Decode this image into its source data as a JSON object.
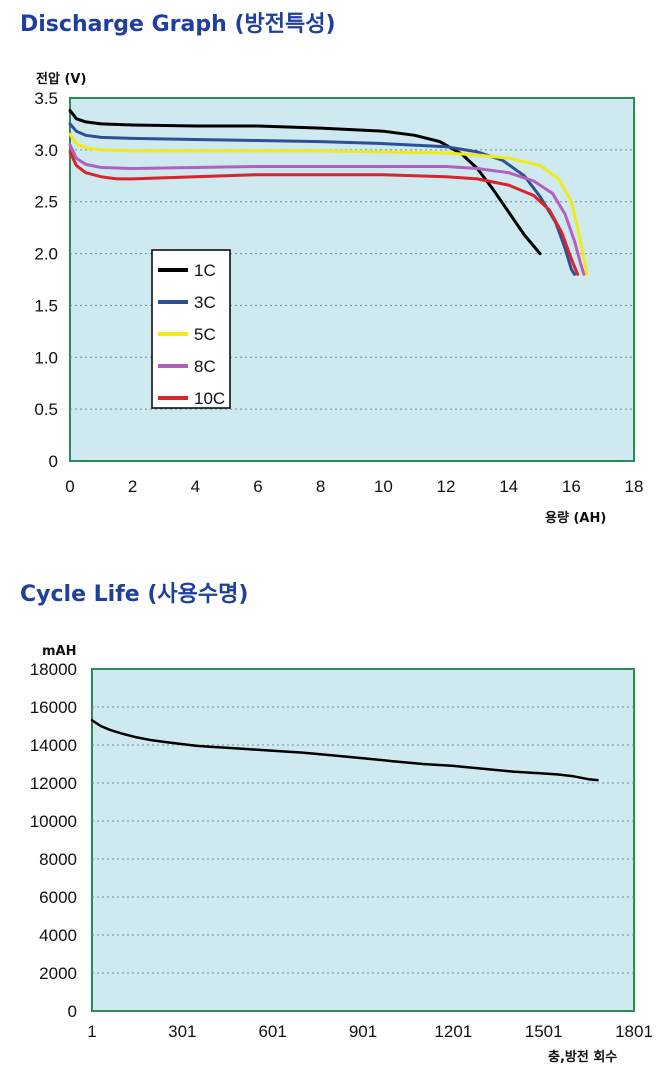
{
  "discharge": {
    "title": "Discharge Graph (방전특성)",
    "chart_data": {
      "type": "line",
      "title": "Discharge Graph (방전특성)",
      "ylabel": "전압 (V)",
      "xlabel": "용량 (AH)",
      "xlim": [
        0,
        18
      ],
      "ylim": [
        0,
        3.5
      ],
      "xticks": [
        "0",
        "2",
        "4",
        "6",
        "8",
        "10",
        "12",
        "14",
        "16",
        "18"
      ],
      "yticks": [
        "0",
        "0.5",
        "1.0",
        "1.5",
        "2.0",
        "2.5",
        "3.0",
        "3.5"
      ],
      "grid": "horizontal dotted",
      "legend": "left-middle",
      "series": [
        {
          "name": "1C",
          "color": "#000000",
          "x": [
            0,
            0.2,
            0.5,
            1,
            2,
            4,
            6,
            8,
            10,
            11,
            11.8,
            12.5,
            13.0,
            13.5,
            14.0,
            14.5,
            15.0
          ],
          "y": [
            3.38,
            3.3,
            3.27,
            3.25,
            3.24,
            3.23,
            3.23,
            3.21,
            3.18,
            3.14,
            3.08,
            2.96,
            2.82,
            2.62,
            2.4,
            2.18,
            2.0
          ]
        },
        {
          "name": "3C",
          "color": "#2f4f95",
          "x": [
            0,
            0.2,
            0.5,
            1,
            2,
            4,
            6,
            8,
            10,
            12,
            13,
            13.8,
            14.5,
            15.0,
            15.5,
            15.8,
            16.0,
            16.1
          ],
          "y": [
            3.25,
            3.18,
            3.14,
            3.12,
            3.11,
            3.1,
            3.09,
            3.08,
            3.06,
            3.03,
            2.98,
            2.9,
            2.75,
            2.55,
            2.3,
            2.05,
            1.85,
            1.8
          ]
        },
        {
          "name": "5C",
          "color": "#f0ea1a",
          "x": [
            0,
            0.2,
            0.5,
            1,
            2,
            4,
            6,
            8,
            10,
            12,
            13,
            14,
            15,
            15.6,
            16.0,
            16.2,
            16.4,
            16.5
          ],
          "y": [
            3.15,
            3.06,
            3.02,
            3.0,
            2.99,
            2.99,
            2.99,
            2.99,
            2.98,
            2.97,
            2.95,
            2.92,
            2.85,
            2.72,
            2.5,
            2.25,
            1.95,
            1.8
          ]
        },
        {
          "name": "8C",
          "color": "#b45fbf",
          "x": [
            0,
            0.2,
            0.5,
            1,
            2,
            4,
            6,
            8,
            10,
            12,
            13,
            14,
            14.8,
            15.4,
            15.8,
            16.1,
            16.3,
            16.4
          ],
          "y": [
            3.05,
            2.92,
            2.86,
            2.83,
            2.82,
            2.83,
            2.84,
            2.84,
            2.84,
            2.84,
            2.82,
            2.78,
            2.7,
            2.58,
            2.38,
            2.12,
            1.9,
            1.8
          ]
        },
        {
          "name": "10C",
          "color": "#d9232d",
          "x": [
            0,
            0.2,
            0.5,
            1,
            1.5,
            2,
            4,
            6,
            8,
            10,
            12,
            13,
            14,
            14.8,
            15.3,
            15.7,
            16.0,
            16.2
          ],
          "y": [
            2.98,
            2.85,
            2.78,
            2.74,
            2.72,
            2.72,
            2.74,
            2.76,
            2.76,
            2.76,
            2.74,
            2.72,
            2.66,
            2.56,
            2.42,
            2.2,
            1.95,
            1.8
          ]
        }
      ]
    }
  },
  "cycle": {
    "title": "Cycle Life (사용수명)",
    "chart_data": {
      "type": "line",
      "title": "Cycle Life (사용수명)",
      "ylabel": "mAH",
      "xlabel": "충,방전 회수",
      "xlim": [
        1,
        1801
      ],
      "ylim": [
        0,
        18000
      ],
      "xticks": [
        "1",
        "301",
        "601",
        "901",
        "1201",
        "1501",
        "1801"
      ],
      "yticks": [
        "0",
        "2000",
        "4000",
        "6000",
        "8000",
        "10000",
        "12000",
        "14000",
        "16000",
        "18000"
      ],
      "grid": "horizontal dotted",
      "series": [
        {
          "color": "#000000",
          "x": [
            1,
            30,
            60,
            100,
            150,
            200,
            250,
            301,
            350,
            400,
            500,
            601,
            700,
            800,
            901,
            1000,
            1100,
            1201,
            1300,
            1400,
            1501,
            1550,
            1600,
            1650,
            1680
          ],
          "y": [
            15300,
            15000,
            14800,
            14600,
            14400,
            14250,
            14150,
            14050,
            13950,
            13900,
            13800,
            13700,
            13600,
            13450,
            13300,
            13150,
            13000,
            12900,
            12750,
            12600,
            12500,
            12450,
            12350,
            12200,
            12150
          ]
        }
      ]
    }
  }
}
